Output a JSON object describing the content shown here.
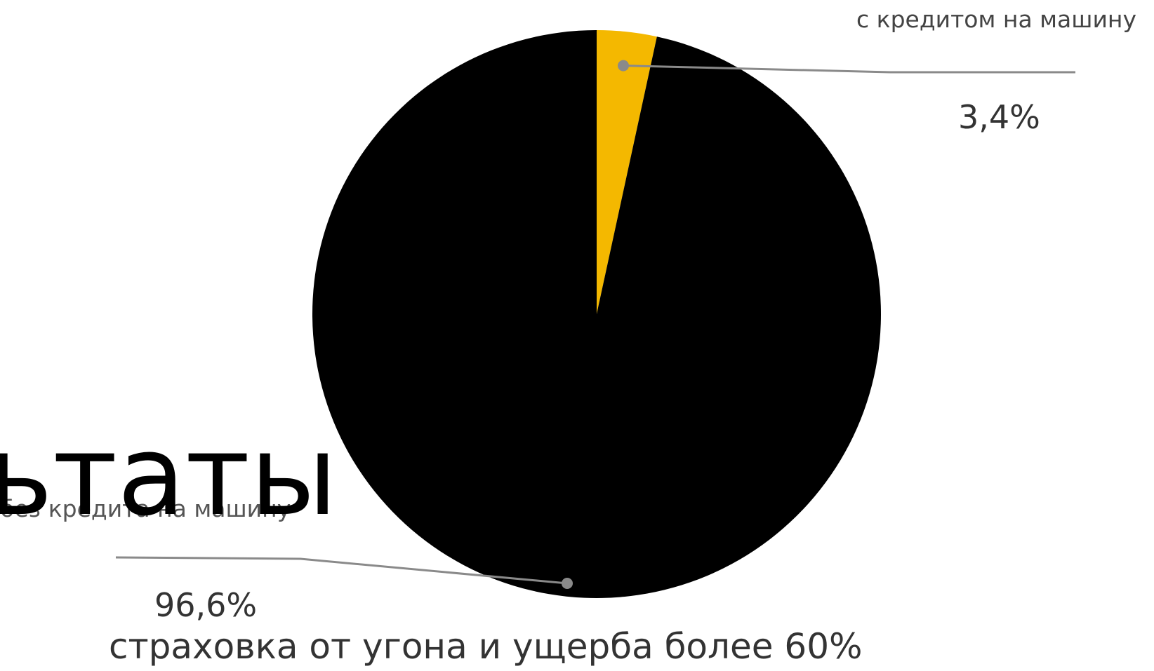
{
  "overlay_title": "ьтаты",
  "subtitle": "страховка от  угона и ущерба более 60%",
  "colors": {
    "credit": "#f4b800",
    "no_credit": "#000000",
    "leader": "#8a8a8a"
  },
  "chart_data": {
    "type": "pie",
    "title": "",
    "slices": [
      {
        "label": "с кредитом на машину",
        "value": 3.4,
        "display": "3,4%",
        "color": "#f4b800"
      },
      {
        "label": "без кредита на машину",
        "value": 96.6,
        "display": "96,6%",
        "color": "#000000"
      }
    ],
    "start_angle": "12 o'clock",
    "direction": "clockwise",
    "legend": "none (leader-line labels)"
  }
}
